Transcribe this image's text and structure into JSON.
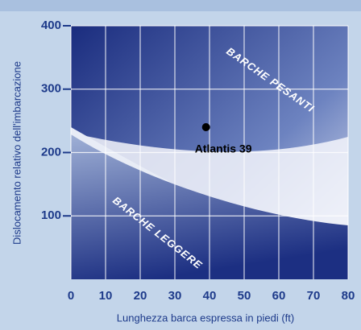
{
  "chart_data": {
    "type": "scatter",
    "x_label": "Lunghezza barca espressa in piedi (ft)",
    "y_label": "Dislocamento relativo dell'imbarcazione",
    "series": [
      {
        "name": "Atlantis 39",
        "color": "#000000",
        "x": [
          39
        ],
        "values": [
          240
        ]
      }
    ],
    "xlim": [
      0,
      80
    ],
    "xticks": [
      0,
      10,
      20,
      30,
      40,
      50,
      60,
      70,
      80
    ],
    "ylim": [
      0,
      400
    ],
    "yticks": [
      100,
      200,
      300,
      400
    ],
    "grid": true
  },
  "regions": [
    "BARCHE PESANTI",
    "BARCHE LEGGERE"
  ]
}
